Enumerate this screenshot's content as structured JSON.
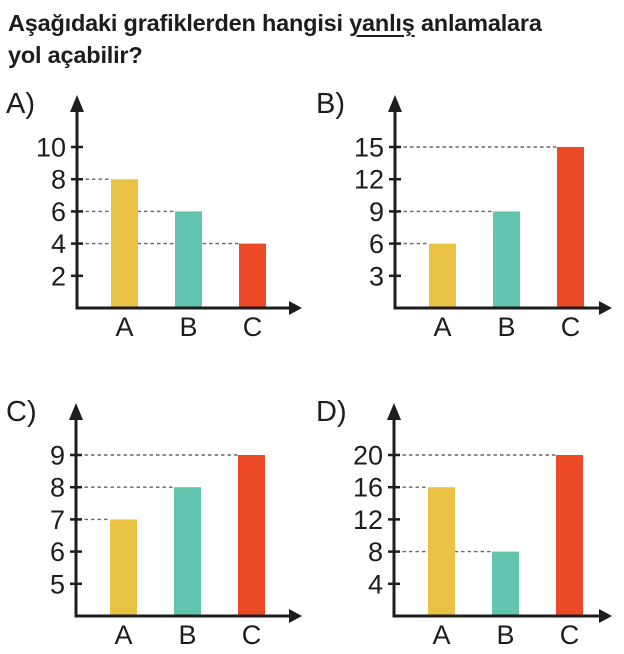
{
  "question": {
    "line1": {
      "before": "Aşağıdaki grafiklerden hangisi ",
      "underlined": "yanlış",
      "after": " anlamalara"
    },
    "line2": "yol açabilir?"
  },
  "colors": {
    "bar_yellow": "#EAC243",
    "bar_teal": "#63C5AF",
    "bar_red": "#EC4A27",
    "axis": "#1d1d1d",
    "guide_line": "#666666",
    "text": "#1d1d1d",
    "background": "#ffffff"
  },
  "chart_data": [
    {
      "type": "bar",
      "option_label": "A)",
      "categories": [
        "A",
        "B",
        "C"
      ],
      "values": [
        8,
        6,
        4
      ],
      "yticks": [
        2,
        4,
        6,
        8,
        10
      ],
      "ylim": [
        0,
        10
      ],
      "bar_colors": [
        "#EAC243",
        "#63C5AF",
        "#EC4A27"
      ],
      "dashed_guides": [
        8,
        6,
        4
      ],
      "grid": false,
      "title": "",
      "xlabel": "",
      "ylabel": ""
    },
    {
      "type": "bar",
      "option_label": "B)",
      "categories": [
        "A",
        "B",
        "C"
      ],
      "values": [
        6,
        9,
        15
      ],
      "yticks": [
        3,
        6,
        9,
        12,
        15
      ],
      "ylim": [
        0,
        15
      ],
      "bar_colors": [
        "#EAC243",
        "#63C5AF",
        "#EC4A27"
      ],
      "dashed_guides": [
        6,
        9,
        15
      ],
      "grid": false,
      "title": "",
      "xlabel": "",
      "ylabel": ""
    },
    {
      "type": "bar",
      "option_label": "C)",
      "categories": [
        "A",
        "B",
        "C"
      ],
      "values": [
        7,
        8,
        9
      ],
      "yticks": [
        5,
        6,
        7,
        8,
        9
      ],
      "ylim": [
        4,
        9
      ],
      "bar_colors": [
        "#EAC243",
        "#63C5AF",
        "#EC4A27"
      ],
      "dashed_guides": [
        7,
        8,
        9
      ],
      "grid": false,
      "title": "",
      "xlabel": "",
      "ylabel": ""
    },
    {
      "type": "bar",
      "option_label": "D)",
      "categories": [
        "A",
        "B",
        "C"
      ],
      "values": [
        16,
        8,
        20
      ],
      "yticks": [
        4,
        8,
        12,
        16,
        20
      ],
      "ylim": [
        0,
        20
      ],
      "bar_colors": [
        "#EAC243",
        "#63C5AF",
        "#EC4A27"
      ],
      "dashed_guides": [
        16,
        8,
        20
      ],
      "grid": false,
      "title": "",
      "xlabel": "",
      "ylabel": ""
    }
  ]
}
